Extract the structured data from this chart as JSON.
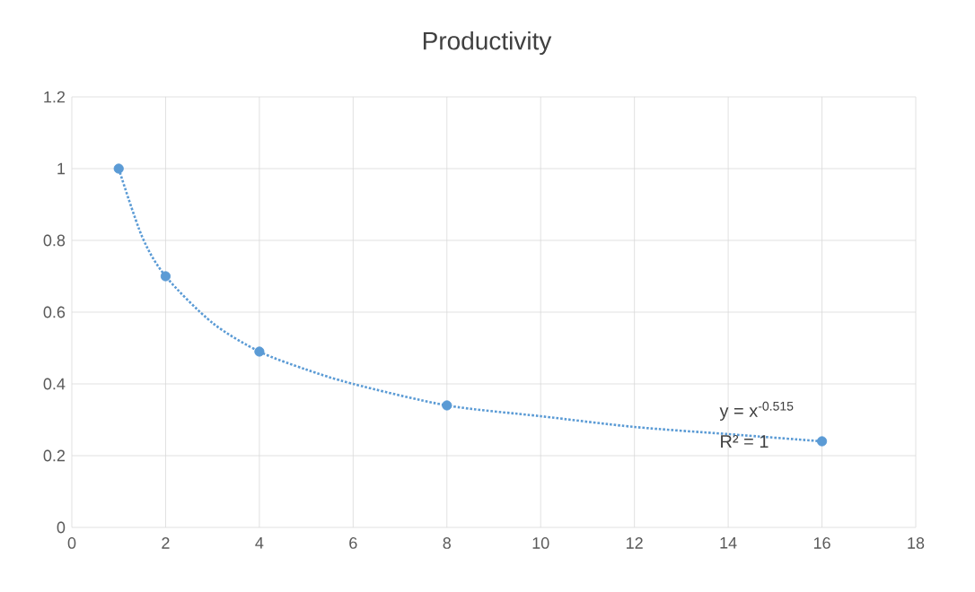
{
  "chart_data": {
    "type": "scatter",
    "title": "Productivity",
    "xlim": [
      0,
      18
    ],
    "ylim": [
      0,
      1.2
    ],
    "xticks": [
      0,
      2,
      4,
      6,
      8,
      10,
      12,
      14,
      16,
      18
    ],
    "yticks": [
      0,
      0.2,
      0.4,
      0.6,
      0.8,
      1,
      1.2
    ],
    "grid": true,
    "series": [
      {
        "color": "#5b9bd5",
        "marker": "circle",
        "x": [
          1,
          2,
          4,
          8,
          16
        ],
        "values": [
          1,
          0.7,
          0.49,
          0.34,
          0.24
        ]
      },
      {
        "type": "line",
        "color": "#5b9bd5",
        "line_style": "dotted",
        "x": [
          1,
          1.5,
          2,
          3,
          4,
          5,
          6,
          8,
          10,
          12,
          14,
          16
        ],
        "values": [
          1,
          0.81,
          0.7,
          0.57,
          0.49,
          0.44,
          0.4,
          0.34,
          0.31,
          0.28,
          0.26,
          0.24
        ]
      }
    ],
    "annotations": [
      "y = x$^{-0.515}$",
      "R² = 1"
    ]
  }
}
